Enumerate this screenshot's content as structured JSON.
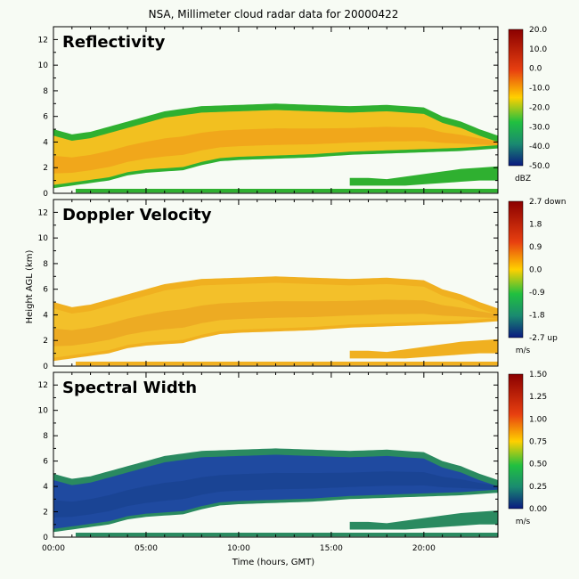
{
  "title": "NSA, Millimeter cloud radar data for 20000422",
  "xlabel": "Time (hours, GMT)",
  "ylabel": "Height AGL (km)",
  "x_ticks": [
    "00:00",
    "05:00",
    "10:00",
    "15:00",
    "20:00"
  ],
  "y_ticks": [
    "0",
    "2",
    "4",
    "6",
    "8",
    "10",
    "12"
  ],
  "panels": [
    {
      "label": "Reflectivity",
      "unit": "dBZ",
      "colorbar_ticks": [
        "20.0",
        "10.0",
        "0.0",
        "-10.0",
        "-20.0",
        "-30.0",
        "-40.0",
        "-50.0"
      ],
      "colors": {
        "background": "#f7fbf4",
        "bar_top": "#8b0000",
        "bar_mid": "#ffd000",
        "bar_low": "#20c040",
        "bar_bottom": "#0a1a80",
        "fill_main": "#f2c020",
        "fill_edge": "#2fb030",
        "fill_core": "#f09a18"
      }
    },
    {
      "label": "Doppler Velocity",
      "unit": "m/s",
      "colorbar_ticks": [
        "2.7 down",
        "1.8",
        "0.9",
        "0.0",
        "-0.9",
        "-1.8",
        "-2.7 up"
      ],
      "colors": {
        "background": "#f7fbf4",
        "bar_top": "#8b0000",
        "bar_mid": "#ffd000",
        "bar_low": "#20c040",
        "bar_bottom": "#0a1a80",
        "fill_main": "#f3c02a",
        "fill_edge": "#f0b020",
        "fill_core": "#eaa020"
      }
    },
    {
      "label": "Spectral Width",
      "unit": "m/s",
      "colorbar_ticks": [
        "1.50",
        "1.25",
        "1.00",
        "0.75",
        "0.50",
        "0.25",
        "0.00"
      ],
      "colors": {
        "background": "#f7fbf4",
        "bar_top": "#8b0000",
        "bar_mid": "#ffd000",
        "bar_low": "#20c040",
        "bar_bottom": "#0a1a80",
        "fill_main": "#1f4aa0",
        "fill_edge": "#2a8a60",
        "fill_core": "#18408e"
      }
    }
  ],
  "chart_data": [
    {
      "type": "heatmap",
      "title": "Reflectivity",
      "colorbar_label": "dBZ",
      "colorbar_range": [
        -50,
        20
      ],
      "xlim_hours": [
        0,
        24
      ],
      "ylim_km": [
        0,
        13
      ],
      "cloud_top_km": {
        "x_hours": [
          0,
          1,
          2,
          3,
          4,
          5,
          6,
          8,
          10,
          12,
          14,
          16,
          18,
          20,
          21,
          22,
          23,
          24
        ],
        "y": [
          5.0,
          4.6,
          4.8,
          5.2,
          5.6,
          6.0,
          6.4,
          6.8,
          6.9,
          7.0,
          6.9,
          6.8,
          6.9,
          6.7,
          6.0,
          5.6,
          5.0,
          4.5
        ]
      },
      "cloud_base_km": {
        "x_hours": [
          0,
          1,
          2,
          3,
          4,
          5,
          6,
          7,
          8,
          9,
          10,
          12,
          14,
          16,
          18,
          20,
          22,
          24
        ],
        "y": [
          0.4,
          0.6,
          0.8,
          1.0,
          1.4,
          1.6,
          1.7,
          1.8,
          2.2,
          2.5,
          2.6,
          2.7,
          2.8,
          3.0,
          3.1,
          3.2,
          3.3,
          3.5
        ]
      },
      "low_cloud_km": {
        "x_hours": [
          16,
          17,
          18,
          19,
          20,
          21,
          22,
          23,
          24
        ],
        "y_base": [
          0.6,
          0.6,
          0.6,
          0.6,
          0.7,
          0.8,
          0.9,
          1.0,
          1.0
        ],
        "y_top": [
          1.2,
          1.2,
          1.1,
          1.3,
          1.5,
          1.7,
          1.9,
          2.0,
          2.1
        ]
      }
    },
    {
      "type": "heatmap",
      "title": "Doppler Velocity",
      "colorbar_label": "m/s",
      "colorbar_range": [
        -2.7,
        2.7
      ],
      "xlim_hours": [
        0,
        24
      ],
      "ylim_km": [
        0,
        13
      ],
      "cloud_top_km": {
        "x_hours": [
          0,
          1,
          2,
          3,
          4,
          5,
          6,
          8,
          10,
          12,
          14,
          16,
          18,
          20,
          21,
          22,
          23,
          24
        ],
        "y": [
          5.0,
          4.6,
          4.8,
          5.2,
          5.6,
          6.0,
          6.4,
          6.8,
          6.9,
          7.0,
          6.9,
          6.8,
          6.9,
          6.7,
          6.0,
          5.6,
          5.0,
          4.5
        ]
      },
      "cloud_base_km": {
        "x_hours": [
          0,
          1,
          2,
          3,
          4,
          5,
          6,
          7,
          8,
          9,
          10,
          12,
          14,
          16,
          18,
          20,
          22,
          24
        ],
        "y": [
          0.4,
          0.6,
          0.8,
          1.0,
          1.4,
          1.6,
          1.7,
          1.8,
          2.2,
          2.5,
          2.6,
          2.7,
          2.8,
          3.0,
          3.1,
          3.2,
          3.3,
          3.5
        ]
      },
      "low_cloud_km": {
        "x_hours": [
          16,
          17,
          18,
          19,
          20,
          21,
          22,
          23,
          24
        ],
        "y_base": [
          0.6,
          0.6,
          0.6,
          0.6,
          0.7,
          0.8,
          0.9,
          1.0,
          1.0
        ],
        "y_top": [
          1.2,
          1.2,
          1.1,
          1.3,
          1.5,
          1.7,
          1.9,
          2.0,
          2.1
        ]
      }
    },
    {
      "type": "heatmap",
      "title": "Spectral Width",
      "colorbar_label": "m/s",
      "colorbar_range": [
        0,
        1.5
      ],
      "xlim_hours": [
        0,
        24
      ],
      "ylim_km": [
        0,
        13
      ],
      "cloud_top_km": {
        "x_hours": [
          0,
          1,
          2,
          3,
          4,
          5,
          6,
          8,
          10,
          12,
          14,
          16,
          18,
          20,
          21,
          22,
          23,
          24
        ],
        "y": [
          5.0,
          4.6,
          4.8,
          5.2,
          5.6,
          6.0,
          6.4,
          6.8,
          6.9,
          7.0,
          6.9,
          6.8,
          6.9,
          6.7,
          6.0,
          5.6,
          5.0,
          4.5
        ]
      },
      "cloud_base_km": {
        "x_hours": [
          0,
          1,
          2,
          3,
          4,
          5,
          6,
          7,
          8,
          9,
          10,
          12,
          14,
          16,
          18,
          20,
          22,
          24
        ],
        "y": [
          0.4,
          0.6,
          0.8,
          1.0,
          1.4,
          1.6,
          1.7,
          1.8,
          2.2,
          2.5,
          2.6,
          2.7,
          2.8,
          3.0,
          3.1,
          3.2,
          3.3,
          3.5
        ]
      },
      "low_cloud_km": {
        "x_hours": [
          16,
          17,
          18,
          19,
          20,
          21,
          22,
          23,
          24
        ],
        "y_base": [
          0.6,
          0.6,
          0.6,
          0.6,
          0.7,
          0.8,
          0.9,
          1.0,
          1.0
        ],
        "y_top": [
          1.2,
          1.2,
          1.1,
          1.3,
          1.5,
          1.7,
          1.9,
          2.0,
          2.1
        ]
      }
    }
  ]
}
